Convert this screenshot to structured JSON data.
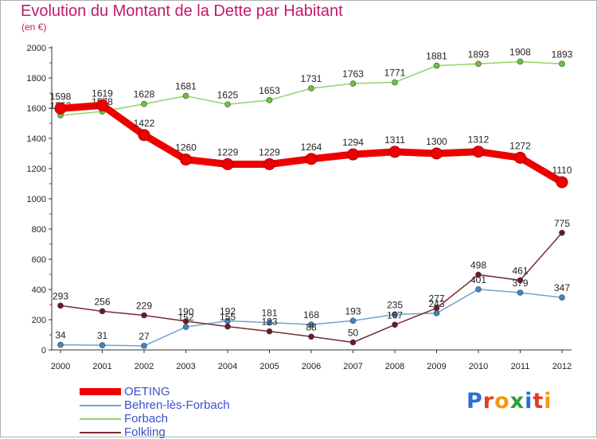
{
  "title": "Evolution du Montant de la Dette par Habitant",
  "unit": "(en €)",
  "logo": {
    "text": "Proxiti",
    "letters": [
      {
        "ch": "P",
        "color": "#2b6ed6"
      },
      {
        "ch": "r",
        "color": "#e33b24"
      },
      {
        "ch": "o",
        "color": "#f29a12"
      },
      {
        "ch": "x",
        "color": "#2e9e3a"
      },
      {
        "ch": "i",
        "color": "#2b6ed6"
      },
      {
        "ch": "t",
        "color": "#e33b24"
      },
      {
        "ch": "i",
        "color": "#f29a12"
      }
    ]
  },
  "chart_data": {
    "type": "line",
    "title": "Evolution du Montant de la Dette par Habitant",
    "subtitle": "(en €)",
    "x": [
      2000,
      2001,
      2002,
      2003,
      2004,
      2005,
      2006,
      2007,
      2008,
      2009,
      2010,
      2011,
      2012
    ],
    "ylim": [
      0,
      2000
    ],
    "yticks": [
      0,
      200,
      400,
      600,
      800,
      1000,
      1200,
      1400,
      1600,
      1800,
      2000
    ],
    "grid": false,
    "legend_position": "bottom-left",
    "series": [
      {
        "name": "OETING",
        "color": "#ee0000",
        "emphasis": true,
        "values": [
          1598,
          1619,
          1422,
          1260,
          1229,
          1229,
          1264,
          1294,
          1311,
          1300,
          1312,
          1272,
          1110
        ]
      },
      {
        "name": "Behren-lès-Forbach",
        "color": "#6fa3cf",
        "marker": "#3d86c6",
        "values": [
          34,
          31,
          27,
          152,
          192,
          181,
          168,
          193,
          235,
          243,
          401,
          379,
          347
        ]
      },
      {
        "name": "Forbach",
        "color": "#8fd468",
        "marker": "#6cc43c",
        "values": [
          1552,
          1578,
          1628,
          1681,
          1625,
          1653,
          1731,
          1763,
          1771,
          1881,
          1893,
          1908,
          1893
        ]
      },
      {
        "name": "Folkling",
        "color": "#7a2a32",
        "marker": "#6a1a24",
        "values": [
          293,
          256,
          229,
          190,
          155,
          123,
          88,
          50,
          167,
          277,
          498,
          461,
          775
        ]
      }
    ]
  }
}
